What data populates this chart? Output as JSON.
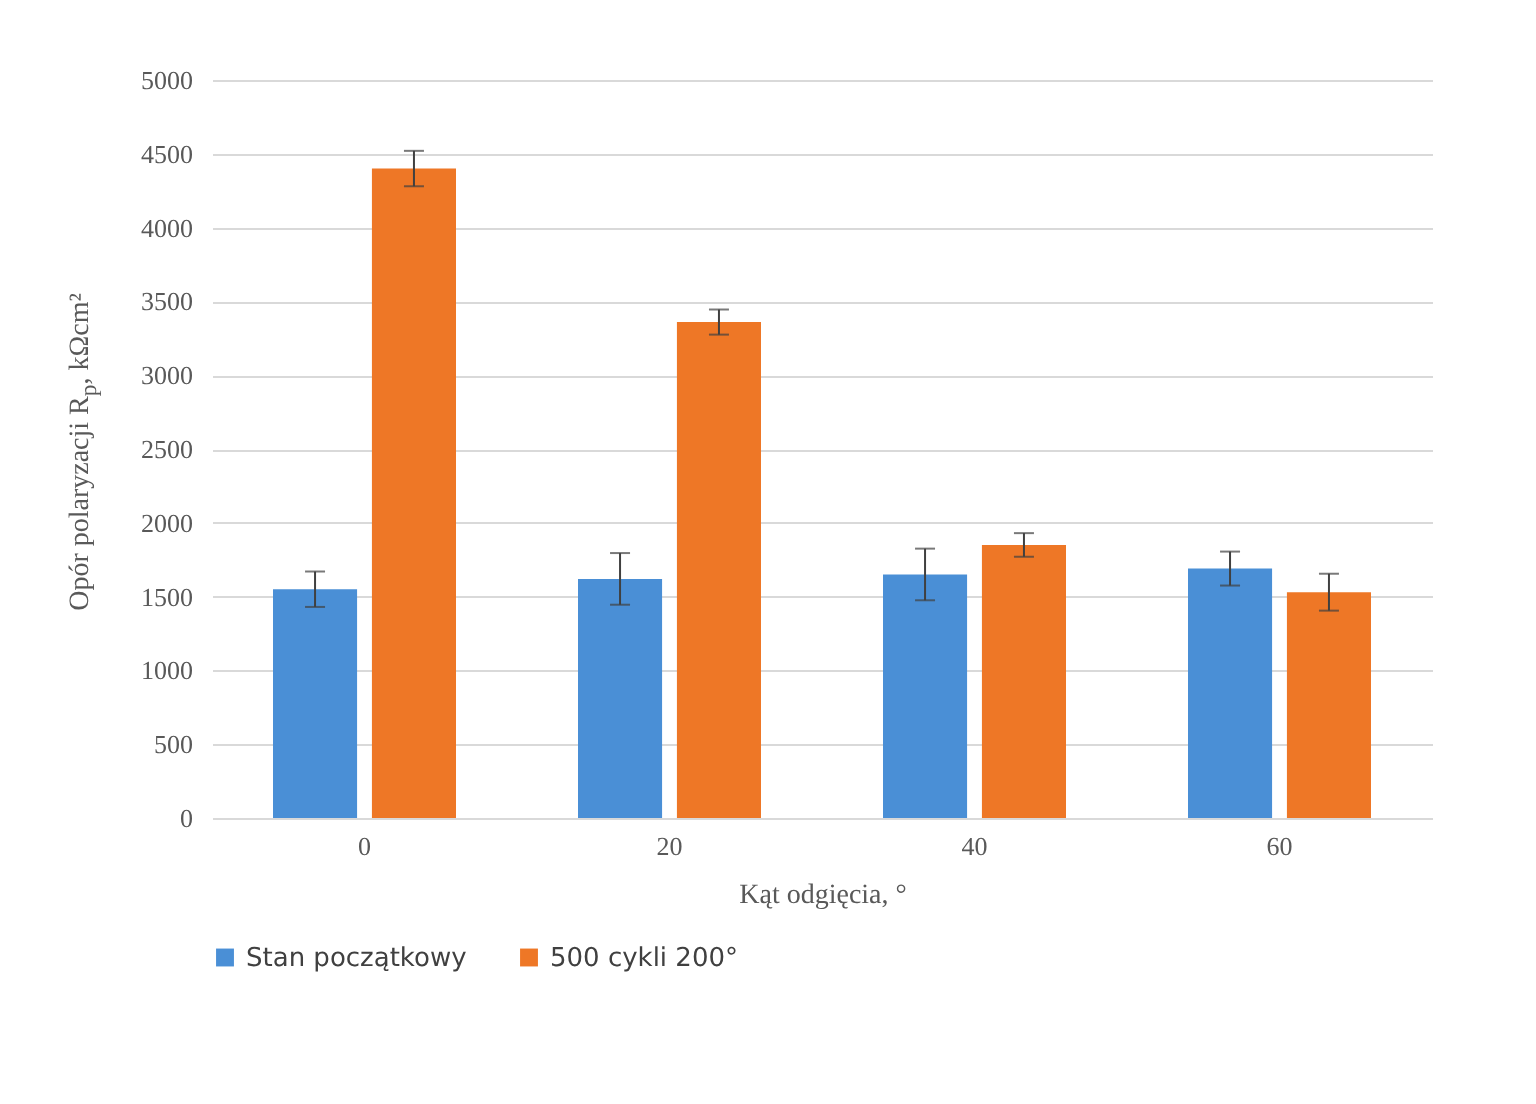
{
  "chart_data": {
    "type": "bar",
    "xlabel": "Kąt odgięcia,  °",
    "ylabel": "Opór polaryzacji R$_{p}$, kΩcm²",
    "categories": [
      "0",
      "20",
      "40",
      "60"
    ],
    "series": [
      {
        "name": "Stan początkowy",
        "color": "#4a8fd6",
        "values": [
          1550,
          1620,
          1650,
          1690
        ],
        "errors": [
          120,
          175,
          175,
          115
        ]
      },
      {
        "name": "500 cykli 200°",
        "color": "#ee7726",
        "values": [
          4400,
          3360,
          1850,
          1530
        ],
        "errors": [
          120,
          85,
          80,
          125
        ]
      }
    ],
    "ylim": [
      0,
      5000
    ],
    "yticks": [
      0,
      500,
      1000,
      1500,
      2000,
      2500,
      3000,
      3500,
      4000,
      4500,
      5000
    ],
    "grid": "y",
    "legend": "bottom"
  }
}
